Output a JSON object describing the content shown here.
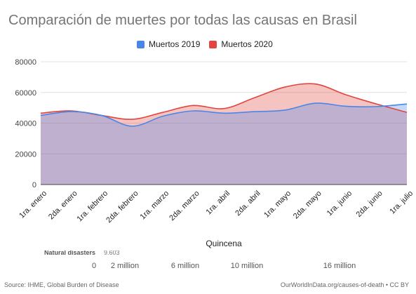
{
  "colors": {
    "series_2019": "#4a86e8",
    "series_2020": "#e0463f",
    "grid": "#e0e0e0",
    "axis": "#444444"
  },
  "chart_data": {
    "type": "area",
    "title": "Comparación de muertes por todas las causas en Brasil",
    "xlabel": "Quincena",
    "ylabel": "",
    "categories": [
      "1ra. enero",
      "2da. enero",
      "1ra. febrero",
      "2da. febrero",
      "1ra. marzo",
      "2da. marzo",
      "1ra. abril",
      "2da. abril",
      "1ra. mayo",
      "2da. mayo",
      "1ra. junio",
      "2da. junio",
      "1ra. julio"
    ],
    "ylim": [
      0,
      80000
    ],
    "yticks": [
      0,
      20000,
      40000,
      60000,
      80000
    ],
    "ytick_labels": [
      "0",
      "20000",
      "40000",
      "60000",
      "80000"
    ],
    "grid": true,
    "legend_position": "top-center",
    "series": [
      {
        "name": "Muertos 2019",
        "color": "#4a86e8",
        "values": [
          45000,
          47500,
          45000,
          38000,
          44500,
          48000,
          46500,
          47500,
          48500,
          53000,
          51000,
          50800,
          52500
        ]
      },
      {
        "name": "Muertos 2020",
        "color": "#e0463f",
        "values": [
          46500,
          48000,
          45000,
          42500,
          47000,
          51500,
          49500,
          56500,
          63500,
          65500,
          58500,
          52500,
          47000
        ]
      }
    ]
  },
  "footer": {
    "partial_label": "Natural disasters",
    "partial_value": "9,603",
    "scale_ticks": [
      "0",
      "2 million",
      "6 million",
      "10 million",
      "16 million"
    ],
    "source": "Source: IHME, Global Burden of Disease",
    "credit": "OurWorldInData.org/causes-of-death • CC BY"
  }
}
